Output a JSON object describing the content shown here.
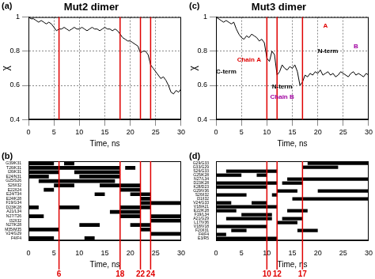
{
  "chart_data": [
    {
      "type": "line",
      "panel": "(a)",
      "title": "Mut2 dimer",
      "xlabel": "Time, ns",
      "ylabel": "χ",
      "color": "#000000",
      "x": [
        0,
        0.5,
        1,
        1.5,
        2,
        2.5,
        3,
        3.5,
        4,
        4.5,
        5,
        5.5,
        6,
        6.5,
        7,
        7.5,
        8,
        8.5,
        9,
        9.5,
        10,
        10.5,
        11,
        11.5,
        12,
        12.5,
        13,
        13.5,
        14,
        14.5,
        15,
        15.5,
        16,
        16.5,
        17,
        17.5,
        18,
        18.5,
        19,
        19.5,
        20,
        20.5,
        21,
        21.5,
        22,
        22.5,
        23,
        23.5,
        24,
        24.5,
        25,
        25.5,
        26,
        26.5,
        27,
        27.5,
        28,
        28.5,
        29,
        29.5,
        30
      ],
      "values": [
        1,
        0.99,
        0.99,
        0.98,
        0.97,
        0.98,
        0.97,
        0.96,
        0.97,
        0.96,
        0.94,
        0.92,
        0.93,
        0.93,
        0.94,
        0.93,
        0.92,
        0.93,
        0.94,
        0.93,
        0.93,
        0.94,
        0.93,
        0.92,
        0.93,
        0.94,
        0.93,
        0.93,
        0.92,
        0.93,
        0.94,
        0.93,
        0.93,
        0.92,
        0.93,
        0.92,
        0.9,
        0.88,
        0.87,
        0.86,
        0.86,
        0.85,
        0.84,
        0.83,
        0.79,
        0.8,
        0.8,
        0.78,
        0.72,
        0.7,
        0.68,
        0.66,
        0.64,
        0.65,
        0.63,
        0.6,
        0.56,
        0.55,
        0.57,
        0.56,
        0.58
      ],
      "xlim": [
        0,
        30
      ],
      "xticks": [
        0,
        5,
        10,
        15,
        20,
        25,
        30
      ],
      "ylim": [
        0.4,
        1
      ],
      "yticks": [
        0.4,
        0.6,
        0.8,
        1
      ],
      "grid": true,
      "vlines": [
        6,
        18,
        22,
        24
      ],
      "vline_color": "#e00000"
    },
    {
      "type": "bar",
      "panel": "(b)",
      "orientation": "horizontal",
      "xlabel": "Time, ns",
      "color": "#000000",
      "categories": [
        "G39/K31",
        "T26/K31",
        "I26/K31",
        "E24/N31",
        "G25/S26",
        "S26/I32",
        "E22/I24",
        "E24/T34",
        "E24/K28",
        "F19/G34",
        "D23/K28",
        "A21/L34",
        "N27/T26",
        "I32/I32",
        "N27/K28",
        "M35/M35",
        "V24/G29",
        "F4/F4"
      ],
      "intervals": [
        [
          [
            0,
            5
          ],
          [
            7,
            9
          ]
        ],
        [
          [
            0,
            18
          ],
          [
            19,
            21
          ]
        ],
        [
          [
            0,
            6
          ],
          [
            9,
            18
          ]
        ],
        [
          [
            0,
            4
          ],
          [
            10,
            18
          ]
        ],
        [
          [
            2,
            17
          ]
        ],
        [
          [
            5,
            9
          ],
          [
            14,
            22
          ]
        ],
        [
          [
            3,
            5
          ],
          [
            18,
            22
          ]
        ],
        [
          [
            13,
            15
          ],
          [
            20,
            24
          ]
        ],
        [
          [
            22,
            24
          ]
        ],
        [
          [
            22,
            30
          ]
        ],
        [
          [
            0,
            2
          ],
          [
            6,
            10
          ],
          [
            18,
            24
          ]
        ],
        [
          [
            16,
            22
          ]
        ],
        [
          [
            0,
            3
          ],
          [
            18,
            22
          ],
          [
            24,
            30
          ]
        ],
        [
          [
            24,
            30
          ]
        ],
        [
          [
            10,
            14
          ],
          [
            20,
            24
          ]
        ],
        [
          [
            0,
            6
          ],
          [
            22,
            24
          ]
        ],
        [
          [
            24,
            30
          ]
        ],
        [
          [
            0,
            5
          ],
          [
            11,
            13
          ]
        ]
      ],
      "xlim": [
        0,
        30
      ],
      "xticks": [
        0,
        5,
        10,
        15,
        20,
        25,
        30
      ],
      "grid": false,
      "vlines": [
        6,
        18,
        22,
        24
      ],
      "vline_color": "#e00000"
    },
    {
      "type": "line",
      "panel": "(c)",
      "title": "Mut3 dimer",
      "xlabel": "Time, ns",
      "ylabel": "χ",
      "color": "#000000",
      "x": [
        0,
        0.5,
        1,
        1.5,
        2,
        2.5,
        3,
        3.5,
        4,
        4.5,
        5,
        5.5,
        6,
        6.5,
        7,
        7.5,
        8,
        8.5,
        9,
        9.5,
        10,
        10.5,
        11,
        11.5,
        12,
        12.5,
        13,
        13.5,
        14,
        14.5,
        15,
        15.5,
        16,
        16.5,
        17,
        17.5,
        18,
        18.5,
        19,
        19.5,
        20,
        20.5,
        21,
        21.5,
        22,
        22.5,
        23,
        23.5,
        24,
        24.5,
        25,
        25.5,
        26,
        26.5,
        27,
        27.5,
        28,
        28.5,
        29,
        29.5,
        30
      ],
      "values": [
        1,
        0.99,
        0.98,
        0.97,
        0.98,
        0.97,
        0.96,
        0.97,
        0.93,
        0.9,
        0.88,
        0.87,
        0.89,
        0.88,
        0.9,
        0.89,
        0.88,
        0.86,
        0.87,
        0.85,
        0.76,
        0.74,
        0.8,
        0.78,
        0.66,
        0.68,
        0.72,
        0.7,
        0.69,
        0.71,
        0.7,
        0.72,
        0.68,
        0.6,
        0.62,
        0.66,
        0.65,
        0.67,
        0.66,
        0.68,
        0.67,
        0.69,
        0.66,
        0.67,
        0.68,
        0.66,
        0.67,
        0.65,
        0.66,
        0.68,
        0.67,
        0.66,
        0.65,
        0.67,
        0.68,
        0.66,
        0.67,
        0.66,
        0.65,
        0.67,
        0.66
      ],
      "xlim": [
        0,
        30
      ],
      "xticks": [
        0,
        5,
        10,
        15,
        20,
        25,
        30
      ],
      "ylim": [
        0.4,
        1
      ],
      "yticks": [
        0.4,
        0.6,
        0.8,
        1
      ],
      "grid": true,
      "vlines": [
        10,
        12,
        17
      ],
      "vline_color": "#e00000",
      "annotations": [
        {
          "text": "Chain A",
          "x": 6.5,
          "y": 0.75,
          "color": "#e00000"
        },
        {
          "text": "C-term",
          "x": 2,
          "y": 0.68,
          "color": "#000000"
        },
        {
          "text": "N-term",
          "x": 13,
          "y": 0.59,
          "color": "#000000"
        },
        {
          "text": "Chain B",
          "x": 13,
          "y": 0.53,
          "color": "#a000a0"
        },
        {
          "text": "A",
          "x": 21.5,
          "y": 0.95,
          "color": "#e00000"
        },
        {
          "text": "B",
          "x": 27.5,
          "y": 0.83,
          "color": "#a000a0"
        },
        {
          "text": "N-term",
          "x": 22,
          "y": 0.8,
          "color": "#000000"
        }
      ]
    },
    {
      "type": "bar",
      "panel": "(d)",
      "orientation": "horizontal",
      "xlabel": "Time, ns",
      "color": "#000000",
      "categories": [
        "G29/G33",
        "G33/G29",
        "S26/G33",
        "G25/K28",
        "N27/L34",
        "D23/K28",
        "K28/D23",
        "G29/V36",
        "S26/I32",
        "I31/I32",
        "V24/G33",
        "V18/A21",
        "E22/K28",
        "F19/L34",
        "A21/G29",
        "L17/V36",
        "V18/V18",
        "F20/I31",
        "F4/F4",
        "E3/R5"
      ],
      "intervals": [
        [
          [
            18,
            30
          ]
        ],
        [
          [
            17,
            24
          ]
        ],
        [
          [
            2,
            12
          ]
        ],
        [
          [
            0,
            5
          ],
          [
            8,
            10
          ]
        ],
        [
          [
            14,
            30
          ]
        ],
        [
          [
            0,
            12
          ],
          [
            13,
            17
          ]
        ],
        [
          [
            0,
            10
          ]
        ],
        [
          [
            12,
            16
          ],
          [
            20,
            30
          ]
        ],
        [
          [
            0,
            6
          ],
          [
            11,
            12
          ]
        ],
        [
          [
            15,
            30
          ]
        ],
        [
          [
            0,
            3
          ],
          [
            7,
            10
          ]
        ],
        [
          [
            0,
            12
          ]
        ],
        [
          [
            0,
            4
          ],
          [
            14,
            18
          ]
        ],
        [
          [
            5,
            11
          ]
        ],
        [
          [
            2,
            11
          ],
          [
            13,
            17
          ]
        ],
        [
          [
            12,
            16
          ]
        ],
        [
          [
            0,
            10
          ]
        ],
        [
          [
            3,
            6
          ],
          [
            16,
            20
          ]
        ],
        [
          [
            0,
            2
          ]
        ],
        [
          [
            0,
            12
          ]
        ]
      ],
      "xlim": [
        0,
        30
      ],
      "xticks": [
        0,
        5,
        10,
        15,
        20,
        25,
        30
      ],
      "grid": false,
      "vlines": [
        10,
        12,
        17
      ],
      "vline_color": "#e00000"
    }
  ]
}
